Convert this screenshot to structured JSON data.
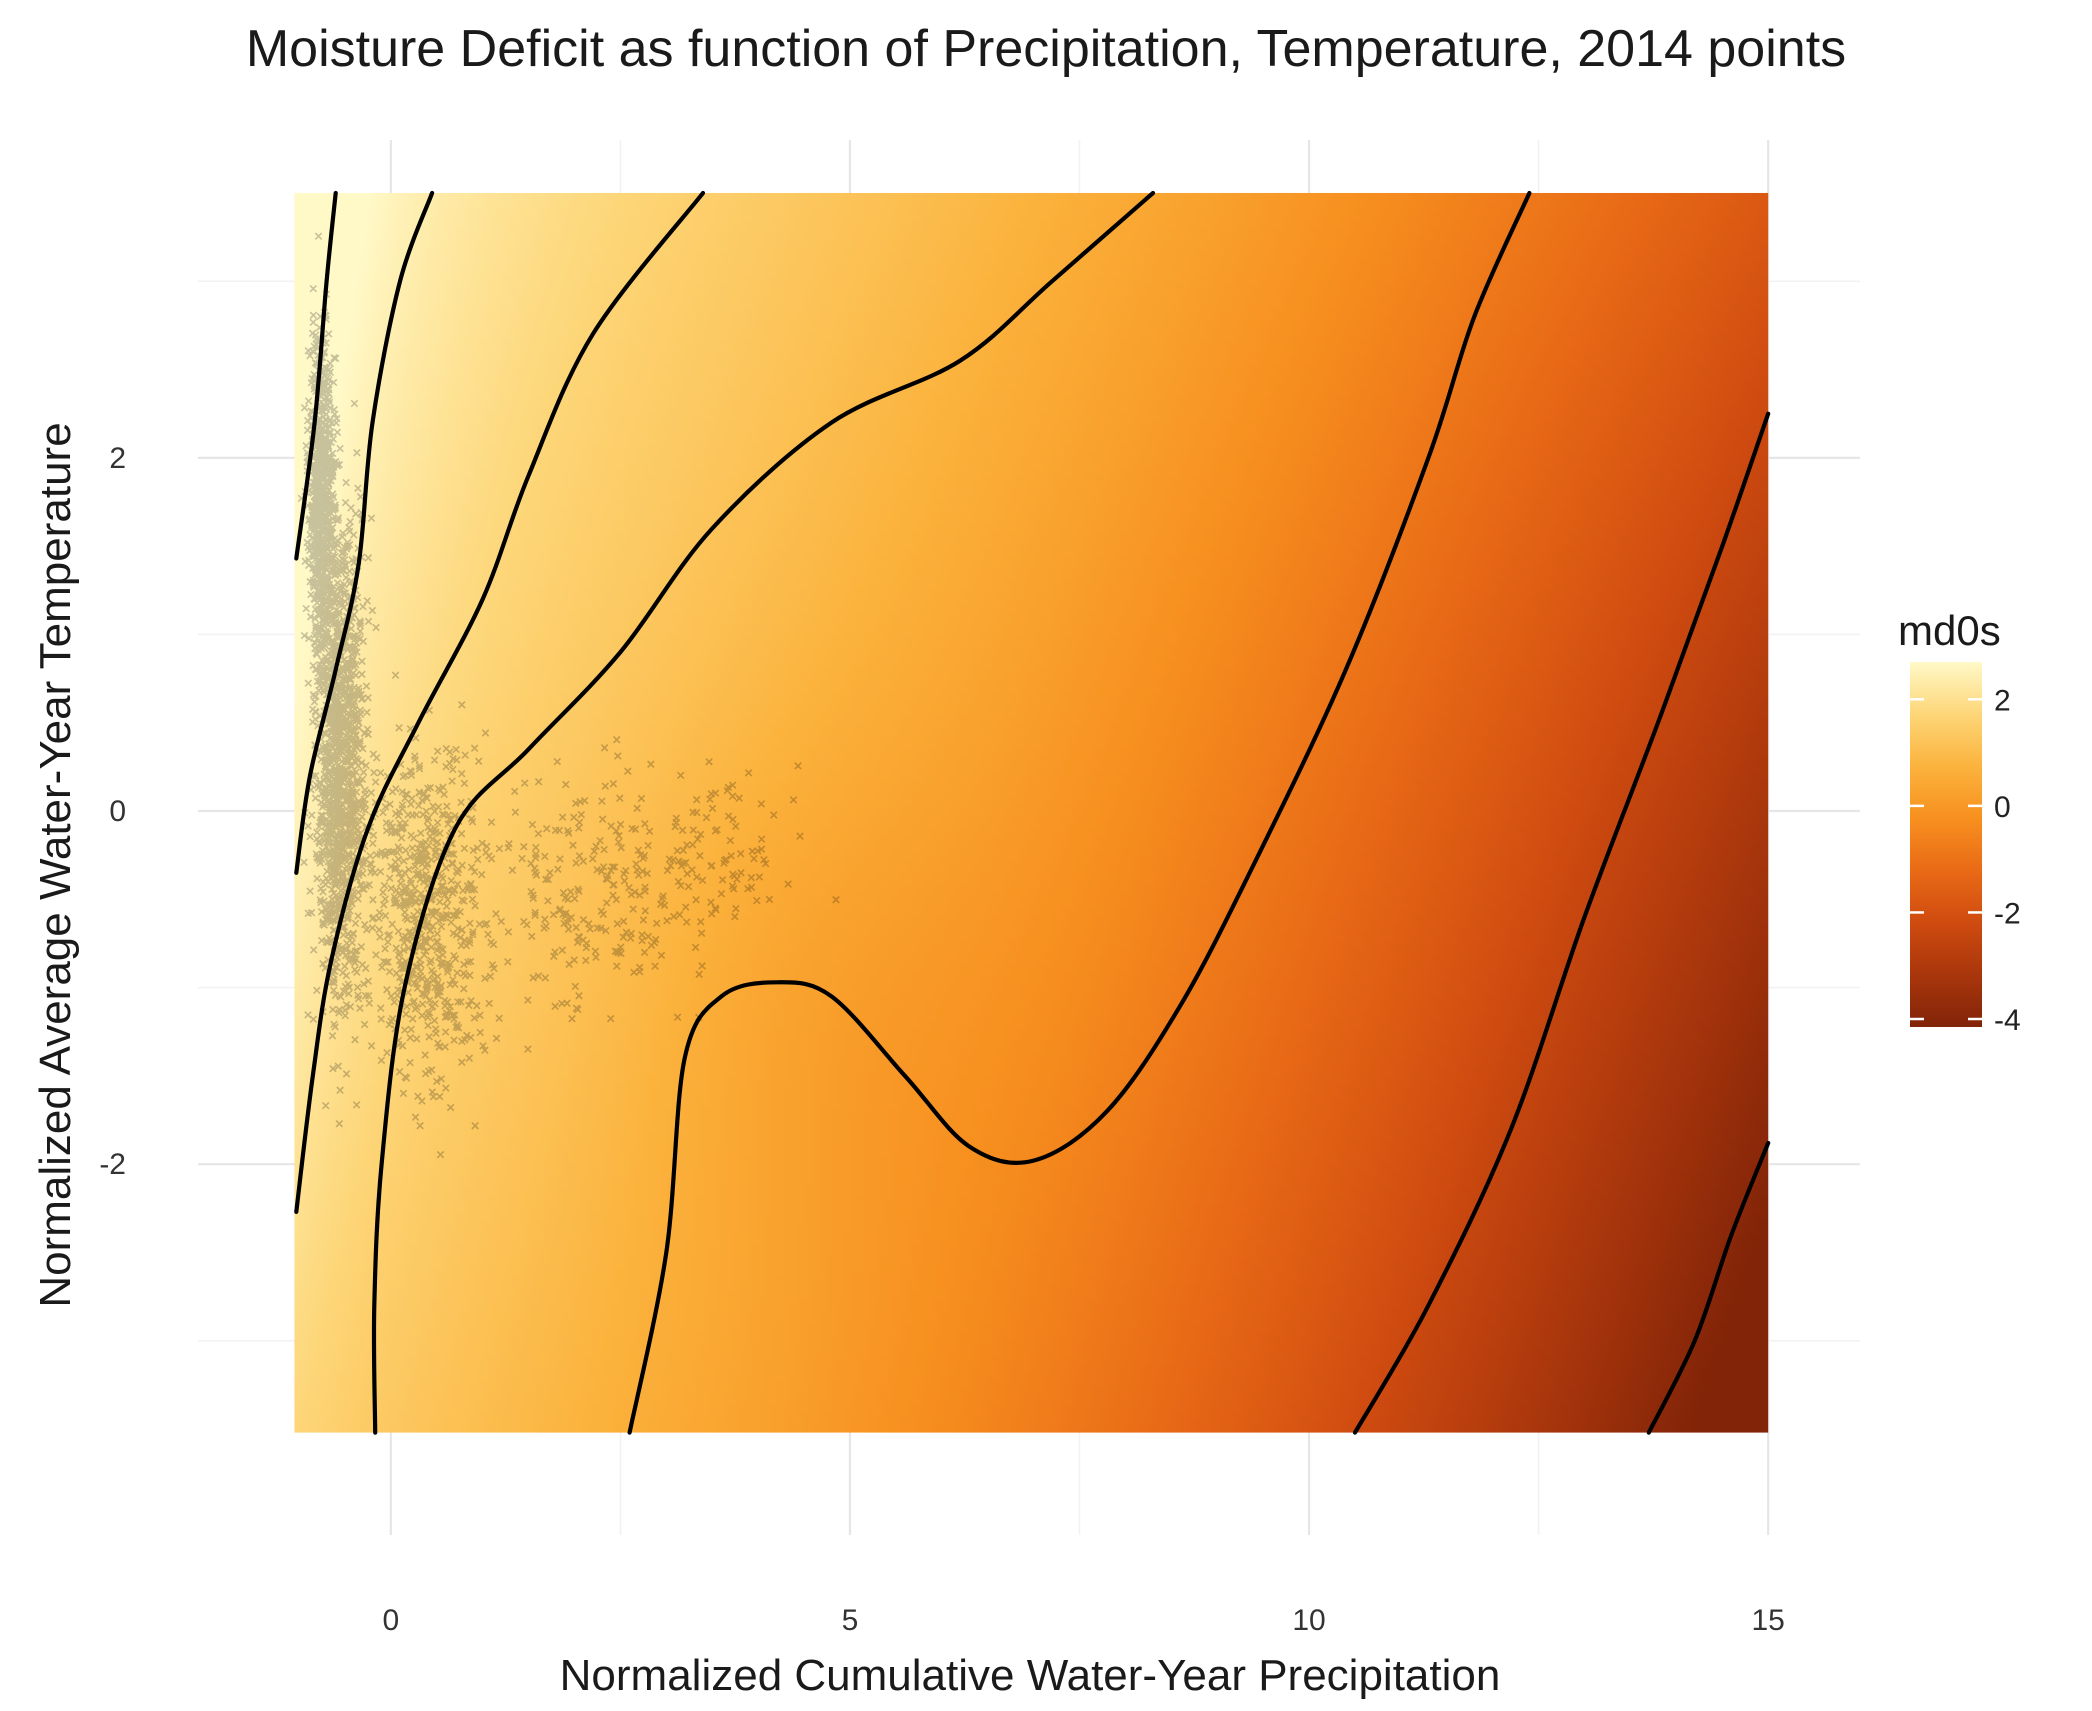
{
  "chart_data": {
    "type": "heatmap",
    "subtype": "filled surface with contour lines and scatter overlay",
    "title": "Moisture Deficit as function of Precipitation, Temperature, 2014 points",
    "xlabel": "Normalized Cumulative Water-Year Precipitation",
    "ylabel": "Normalized Average Water-Year Temperature",
    "xlim": [
      -2.1,
      16
    ],
    "ylim": [
      -4.1,
      3.8
    ],
    "x_ticks": [
      0,
      5,
      10,
      15
    ],
    "x_tick_labels": [
      "0",
      "5",
      "10",
      "15"
    ],
    "y_ticks": [
      -2,
      0,
      2
    ],
    "y_tick_labels": [
      "-2",
      "0",
      "2"
    ],
    "grid": true,
    "surface_extent": {
      "x": [
        -1.05,
        15
      ],
      "y": [
        -3.52,
        3.5
      ]
    },
    "fill_scale": {
      "name": "md0s",
      "range": [
        -4.15,
        2.7
      ],
      "ticks": [
        2,
        0,
        -2,
        -4
      ],
      "tick_labels": [
        "2",
        "0",
        "-2",
        "-4"
      ],
      "colors": [
        "#fff9c8",
        "#fdd678",
        "#fbb33d",
        "#f7901f",
        "#e96a16",
        "#cf4b10",
        "#a9360c",
        "#812408"
      ]
    },
    "legend_position": "right",
    "contours": [
      {
        "points": [
          [
            -1.03,
            1.43
          ],
          [
            -0.83,
            2.2
          ],
          [
            -0.7,
            3.0
          ],
          [
            -0.6,
            3.5
          ]
        ]
      },
      {
        "points": [
          [
            -1.03,
            -0.35
          ],
          [
            -0.88,
            0.2
          ],
          [
            -0.6,
            0.8
          ],
          [
            -0.35,
            1.4
          ],
          [
            -0.2,
            2.2
          ],
          [
            0.1,
            3.0
          ],
          [
            0.45,
            3.5
          ]
        ]
      },
      {
        "points": [
          [
            -1.03,
            -2.27
          ],
          [
            -0.85,
            -1.5
          ],
          [
            -0.65,
            -0.85
          ],
          [
            -0.25,
            -0.1
          ],
          [
            0.3,
            0.5
          ],
          [
            1.0,
            1.2
          ],
          [
            1.5,
            1.9
          ],
          [
            2.2,
            2.7
          ],
          [
            3.4,
            3.5
          ]
        ]
      },
      {
        "points": [
          [
            -0.17,
            -3.52
          ],
          [
            -0.18,
            -2.8
          ],
          [
            -0.1,
            -2.0
          ],
          [
            0.15,
            -1.0
          ],
          [
            0.7,
            -0.1
          ],
          [
            1.5,
            0.35
          ],
          [
            2.5,
            0.9
          ],
          [
            3.5,
            1.6
          ],
          [
            4.8,
            2.2
          ],
          [
            6.2,
            2.55
          ],
          [
            7.2,
            3.0
          ],
          [
            8.3,
            3.5
          ]
        ]
      },
      {
        "points": [
          [
            2.6,
            -3.52
          ],
          [
            3.0,
            -2.5
          ],
          [
            3.2,
            -1.4
          ],
          [
            3.6,
            -1.05
          ],
          [
            4.2,
            -0.97
          ],
          [
            4.8,
            -1.05
          ],
          [
            5.6,
            -1.5
          ],
          [
            6.3,
            -1.9
          ],
          [
            7.0,
            -1.98
          ],
          [
            7.8,
            -1.7
          ],
          [
            8.6,
            -1.1
          ],
          [
            9.4,
            -0.3
          ],
          [
            10.4,
            0.8
          ],
          [
            11.3,
            2.0
          ],
          [
            11.8,
            2.8
          ],
          [
            12.4,
            3.5
          ]
        ]
      },
      {
        "points": [
          [
            10.5,
            -3.52
          ],
          [
            11.3,
            -2.8
          ],
          [
            12.2,
            -1.8
          ],
          [
            13.0,
            -0.6
          ],
          [
            13.8,
            0.5
          ],
          [
            14.5,
            1.5
          ],
          [
            15.0,
            2.25
          ]
        ]
      },
      {
        "points": [
          [
            13.7,
            -3.52
          ],
          [
            14.2,
            -3.0
          ],
          [
            14.6,
            -2.4
          ],
          [
            15.0,
            -1.88
          ]
        ]
      }
    ]
  }
}
